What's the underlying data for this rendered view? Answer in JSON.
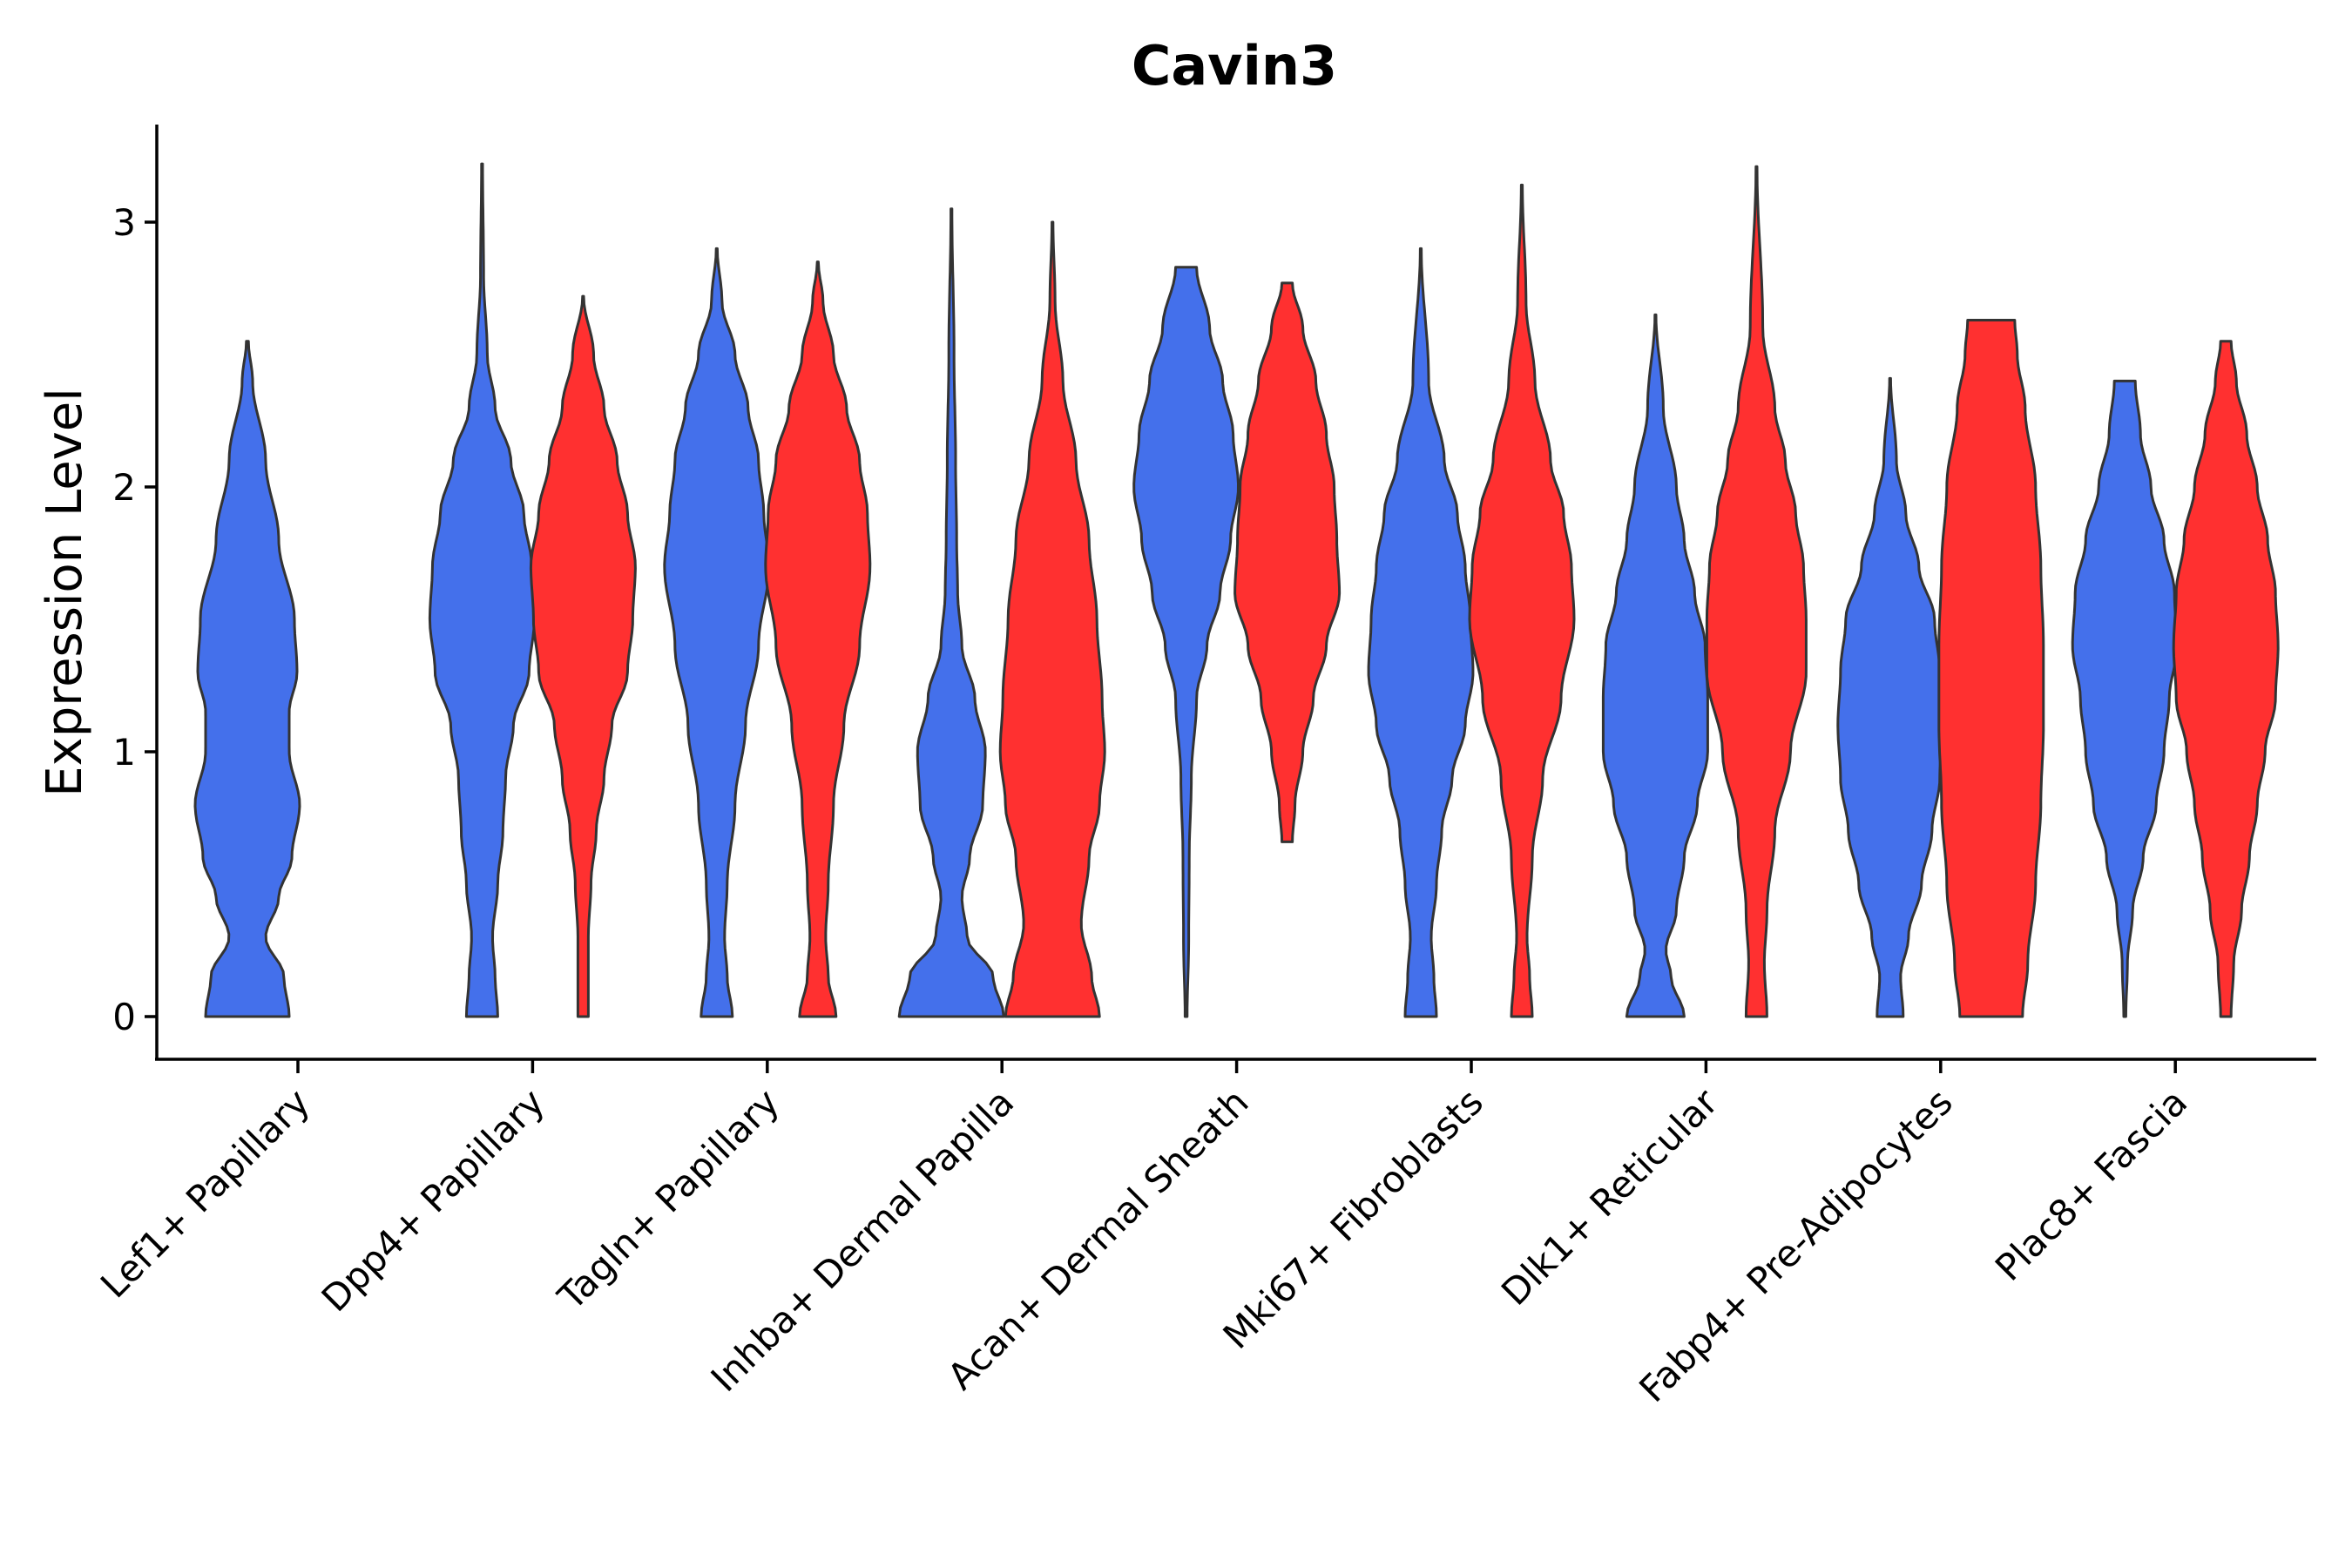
{
  "chart_data": {
    "type": "violin",
    "title": "Cavin3",
    "xlabel": "",
    "ylabel": "Expression Level",
    "ylim": [
      -0.16,
      3.38
    ],
    "yticks": [
      0,
      1,
      2,
      3
    ],
    "legend": "none",
    "grid": false,
    "colors": {
      "group1": "#4470EB",
      "group2": "#FF3030",
      "outline": "#333333",
      "axis": "#000000"
    },
    "categories": [
      "Lef1+ Papillary",
      "Dpp4+ Papillary",
      "Tagln+ Papillary",
      "Inhba+ Dermal Papilla",
      "Acan+ Dermal Sheath",
      "Mki67+ Fibroblasts",
      "Dlk1+ Reticular",
      "Fabp4+ Pre-Adipocytes",
      "Plac8+ Fascia"
    ],
    "series": [
      {
        "category": "Lef1+ Papillary",
        "group": "group1",
        "max": 2.55,
        "profile": [
          [
            0,
            0.8
          ],
          [
            0.15,
            0.7
          ],
          [
            0.3,
            0.35
          ],
          [
            0.45,
            0.6
          ],
          [
            0.6,
            0.85
          ],
          [
            0.8,
            1.0
          ],
          [
            1.0,
            0.8
          ],
          [
            1.15,
            0.8
          ],
          [
            1.3,
            0.95
          ],
          [
            1.5,
            0.9
          ],
          [
            1.8,
            0.6
          ],
          [
            2.1,
            0.35
          ],
          [
            2.4,
            0.1
          ],
          [
            2.55,
            0.02
          ]
        ]
      },
      {
        "category": "Dpp4+ Papillary",
        "group": "group1",
        "max": 3.22,
        "profile": [
          [
            0,
            0.3
          ],
          [
            0.15,
            0.25
          ],
          [
            0.3,
            0.2
          ],
          [
            0.5,
            0.3
          ],
          [
            0.7,
            0.4
          ],
          [
            0.9,
            0.45
          ],
          [
            1.1,
            0.6
          ],
          [
            1.3,
            0.9
          ],
          [
            1.5,
            1.0
          ],
          [
            1.7,
            0.95
          ],
          [
            1.9,
            0.8
          ],
          [
            2.1,
            0.55
          ],
          [
            2.3,
            0.25
          ],
          [
            2.5,
            0.1
          ],
          [
            2.8,
            0.03
          ],
          [
            3.22,
            0.01
          ]
        ]
      },
      {
        "category": "Dpp4+ Papillary",
        "group": "group2",
        "max": 2.72,
        "profile": [
          [
            0,
            0.1
          ],
          [
            0.3,
            0.1
          ],
          [
            0.5,
            0.15
          ],
          [
            0.7,
            0.25
          ],
          [
            0.9,
            0.4
          ],
          [
            1.1,
            0.55
          ],
          [
            1.3,
            0.85
          ],
          [
            1.5,
            0.95
          ],
          [
            1.7,
            1.0
          ],
          [
            1.9,
            0.85
          ],
          [
            2.1,
            0.65
          ],
          [
            2.3,
            0.4
          ],
          [
            2.5,
            0.2
          ],
          [
            2.72,
            0.01
          ]
        ]
      },
      {
        "category": "Tagln+ Papillary",
        "group": "group1",
        "max": 2.9,
        "profile": [
          [
            0,
            0.3
          ],
          [
            0.15,
            0.2
          ],
          [
            0.3,
            0.15
          ],
          [
            0.5,
            0.2
          ],
          [
            0.8,
            0.35
          ],
          [
            1.1,
            0.55
          ],
          [
            1.4,
            0.8
          ],
          [
            1.7,
            1.0
          ],
          [
            1.9,
            0.9
          ],
          [
            2.1,
            0.8
          ],
          [
            2.3,
            0.6
          ],
          [
            2.5,
            0.35
          ],
          [
            2.7,
            0.1
          ],
          [
            2.9,
            0.01
          ]
        ]
      },
      {
        "category": "Tagln+ Papillary",
        "group": "group2",
        "max": 2.85,
        "profile": [
          [
            0,
            0.35
          ],
          [
            0.15,
            0.2
          ],
          [
            0.3,
            0.15
          ],
          [
            0.5,
            0.2
          ],
          [
            0.8,
            0.3
          ],
          [
            1.1,
            0.5
          ],
          [
            1.4,
            0.8
          ],
          [
            1.7,
            1.0
          ],
          [
            1.9,
            0.95
          ],
          [
            2.1,
            0.8
          ],
          [
            2.3,
            0.55
          ],
          [
            2.5,
            0.3
          ],
          [
            2.7,
            0.1
          ],
          [
            2.85,
            0.01
          ]
        ]
      },
      {
        "category": "Inhba+ Dermal Papilla",
        "group": "group1",
        "max": 3.05,
        "profile": [
          [
            0,
            1.0
          ],
          [
            0.15,
            0.8
          ],
          [
            0.3,
            0.3
          ],
          [
            0.45,
            0.2
          ],
          [
            0.6,
            0.35
          ],
          [
            0.8,
            0.6
          ],
          [
            1.0,
            0.65
          ],
          [
            1.2,
            0.45
          ],
          [
            1.4,
            0.2
          ],
          [
            1.6,
            0.12
          ],
          [
            1.8,
            0.1
          ],
          [
            2.1,
            0.08
          ],
          [
            2.5,
            0.05
          ],
          [
            3.05,
            0.01
          ]
        ]
      },
      {
        "category": "Inhba+ Dermal Papilla",
        "group": "group2",
        "max": 3.0,
        "profile": [
          [
            0,
            0.9
          ],
          [
            0.15,
            0.75
          ],
          [
            0.35,
            0.55
          ],
          [
            0.6,
            0.7
          ],
          [
            0.8,
            0.9
          ],
          [
            1.0,
            1.0
          ],
          [
            1.2,
            0.95
          ],
          [
            1.5,
            0.85
          ],
          [
            1.8,
            0.7
          ],
          [
            2.1,
            0.45
          ],
          [
            2.4,
            0.2
          ],
          [
            2.7,
            0.05
          ],
          [
            3.0,
            0.01
          ]
        ]
      },
      {
        "category": "Acan+ Dermal Sheath",
        "group": "group1",
        "max": 2.83,
        "profile": [
          [
            0,
            0.02
          ],
          [
            0.3,
            0.05
          ],
          [
            0.6,
            0.06
          ],
          [
            0.9,
            0.1
          ],
          [
            1.2,
            0.2
          ],
          [
            1.4,
            0.4
          ],
          [
            1.6,
            0.65
          ],
          [
            1.8,
            0.85
          ],
          [
            2.0,
            1.0
          ],
          [
            2.2,
            0.9
          ],
          [
            2.4,
            0.7
          ],
          [
            2.6,
            0.45
          ],
          [
            2.83,
            0.2
          ]
        ]
      },
      {
        "category": "Acan+ Dermal Sheath",
        "group": "group2",
        "max": 2.77,
        "profile": [
          [
            0.66,
            0.1
          ],
          [
            0.8,
            0.15
          ],
          [
            1.0,
            0.3
          ],
          [
            1.2,
            0.5
          ],
          [
            1.4,
            0.75
          ],
          [
            1.6,
            1.0
          ],
          [
            1.8,
            0.95
          ],
          [
            2.0,
            0.9
          ],
          [
            2.2,
            0.75
          ],
          [
            2.4,
            0.55
          ],
          [
            2.6,
            0.3
          ],
          [
            2.77,
            0.1
          ]
        ]
      },
      {
        "category": "Mki67+ Fibroblasts",
        "group": "group1",
        "max": 2.9,
        "profile": [
          [
            0,
            0.3
          ],
          [
            0.15,
            0.25
          ],
          [
            0.3,
            0.2
          ],
          [
            0.5,
            0.3
          ],
          [
            0.7,
            0.4
          ],
          [
            0.9,
            0.6
          ],
          [
            1.1,
            0.85
          ],
          [
            1.3,
            1.0
          ],
          [
            1.5,
            0.95
          ],
          [
            1.7,
            0.85
          ],
          [
            1.9,
            0.7
          ],
          [
            2.1,
            0.45
          ],
          [
            2.4,
            0.15
          ],
          [
            2.9,
            0.01
          ]
        ]
      },
      {
        "category": "Mki67+ Fibroblasts",
        "group": "group2",
        "max": 3.14,
        "profile": [
          [
            0,
            0.2
          ],
          [
            0.15,
            0.15
          ],
          [
            0.3,
            0.1
          ],
          [
            0.6,
            0.2
          ],
          [
            0.9,
            0.4
          ],
          [
            1.2,
            0.75
          ],
          [
            1.5,
            1.0
          ],
          [
            1.7,
            0.95
          ],
          [
            1.9,
            0.8
          ],
          [
            2.1,
            0.55
          ],
          [
            2.4,
            0.25
          ],
          [
            2.7,
            0.08
          ],
          [
            3.14,
            0.01
          ]
        ]
      },
      {
        "category": "Dlk1+ Reticular",
        "group": "group1",
        "max": 2.65,
        "profile": [
          [
            0,
            0.55
          ],
          [
            0.15,
            0.3
          ],
          [
            0.25,
            0.2
          ],
          [
            0.4,
            0.4
          ],
          [
            0.6,
            0.55
          ],
          [
            0.8,
            0.8
          ],
          [
            1.0,
            1.0
          ],
          [
            1.2,
            1.0
          ],
          [
            1.4,
            0.95
          ],
          [
            1.6,
            0.75
          ],
          [
            1.8,
            0.55
          ],
          [
            2.0,
            0.4
          ],
          [
            2.3,
            0.15
          ],
          [
            2.65,
            0.01
          ]
        ]
      },
      {
        "category": "Dlk1+ Reticular",
        "group": "group2",
        "max": 3.21,
        "profile": [
          [
            0,
            0.2
          ],
          [
            0.2,
            0.15
          ],
          [
            0.4,
            0.2
          ],
          [
            0.7,
            0.35
          ],
          [
            1.0,
            0.65
          ],
          [
            1.3,
            0.95
          ],
          [
            1.5,
            0.95
          ],
          [
            1.7,
            0.9
          ],
          [
            1.9,
            0.75
          ],
          [
            2.1,
            0.55
          ],
          [
            2.3,
            0.35
          ],
          [
            2.6,
            0.12
          ],
          [
            3.21,
            0.01
          ]
        ]
      },
      {
        "category": "Fabp4+ Pre-Adipocytes",
        "group": "group1",
        "max": 2.41,
        "profile": [
          [
            0,
            0.25
          ],
          [
            0.15,
            0.2
          ],
          [
            0.3,
            0.35
          ],
          [
            0.5,
            0.6
          ],
          [
            0.7,
            0.8
          ],
          [
            0.9,
            0.95
          ],
          [
            1.1,
            1.0
          ],
          [
            1.3,
            0.95
          ],
          [
            1.5,
            0.85
          ],
          [
            1.7,
            0.55
          ],
          [
            1.9,
            0.3
          ],
          [
            2.1,
            0.12
          ],
          [
            2.41,
            0.01
          ]
        ]
      },
      {
        "category": "Fabp4+ Pre-Adipocytes",
        "group": "group2",
        "max": 2.63,
        "profile": [
          [
            0,
            0.6
          ],
          [
            0.2,
            0.7
          ],
          [
            0.5,
            0.85
          ],
          [
            0.8,
            0.95
          ],
          [
            1.1,
            1.0
          ],
          [
            1.4,
            1.0
          ],
          [
            1.7,
            0.95
          ],
          [
            2.0,
            0.85
          ],
          [
            2.3,
            0.65
          ],
          [
            2.5,
            0.5
          ],
          [
            2.63,
            0.45
          ]
        ]
      },
      {
        "category": "Plac8+ Fascia",
        "group": "group1",
        "max": 2.4,
        "profile": [
          [
            0,
            0.02
          ],
          [
            0.2,
            0.05
          ],
          [
            0.4,
            0.15
          ],
          [
            0.6,
            0.35
          ],
          [
            0.8,
            0.6
          ],
          [
            1.0,
            0.75
          ],
          [
            1.2,
            0.85
          ],
          [
            1.4,
            1.0
          ],
          [
            1.6,
            0.95
          ],
          [
            1.8,
            0.75
          ],
          [
            2.0,
            0.5
          ],
          [
            2.2,
            0.3
          ],
          [
            2.4,
            0.2
          ]
        ]
      },
      {
        "category": "Plac8+ Fascia",
        "group": "group2",
        "max": 2.55,
        "profile": [
          [
            0,
            0.1
          ],
          [
            0.2,
            0.15
          ],
          [
            0.4,
            0.3
          ],
          [
            0.6,
            0.45
          ],
          [
            0.8,
            0.6
          ],
          [
            1.0,
            0.75
          ],
          [
            1.2,
            0.95
          ],
          [
            1.4,
            1.0
          ],
          [
            1.6,
            0.95
          ],
          [
            1.8,
            0.8
          ],
          [
            2.0,
            0.6
          ],
          [
            2.2,
            0.4
          ],
          [
            2.4,
            0.2
          ],
          [
            2.55,
            0.1
          ]
        ]
      }
    ]
  }
}
